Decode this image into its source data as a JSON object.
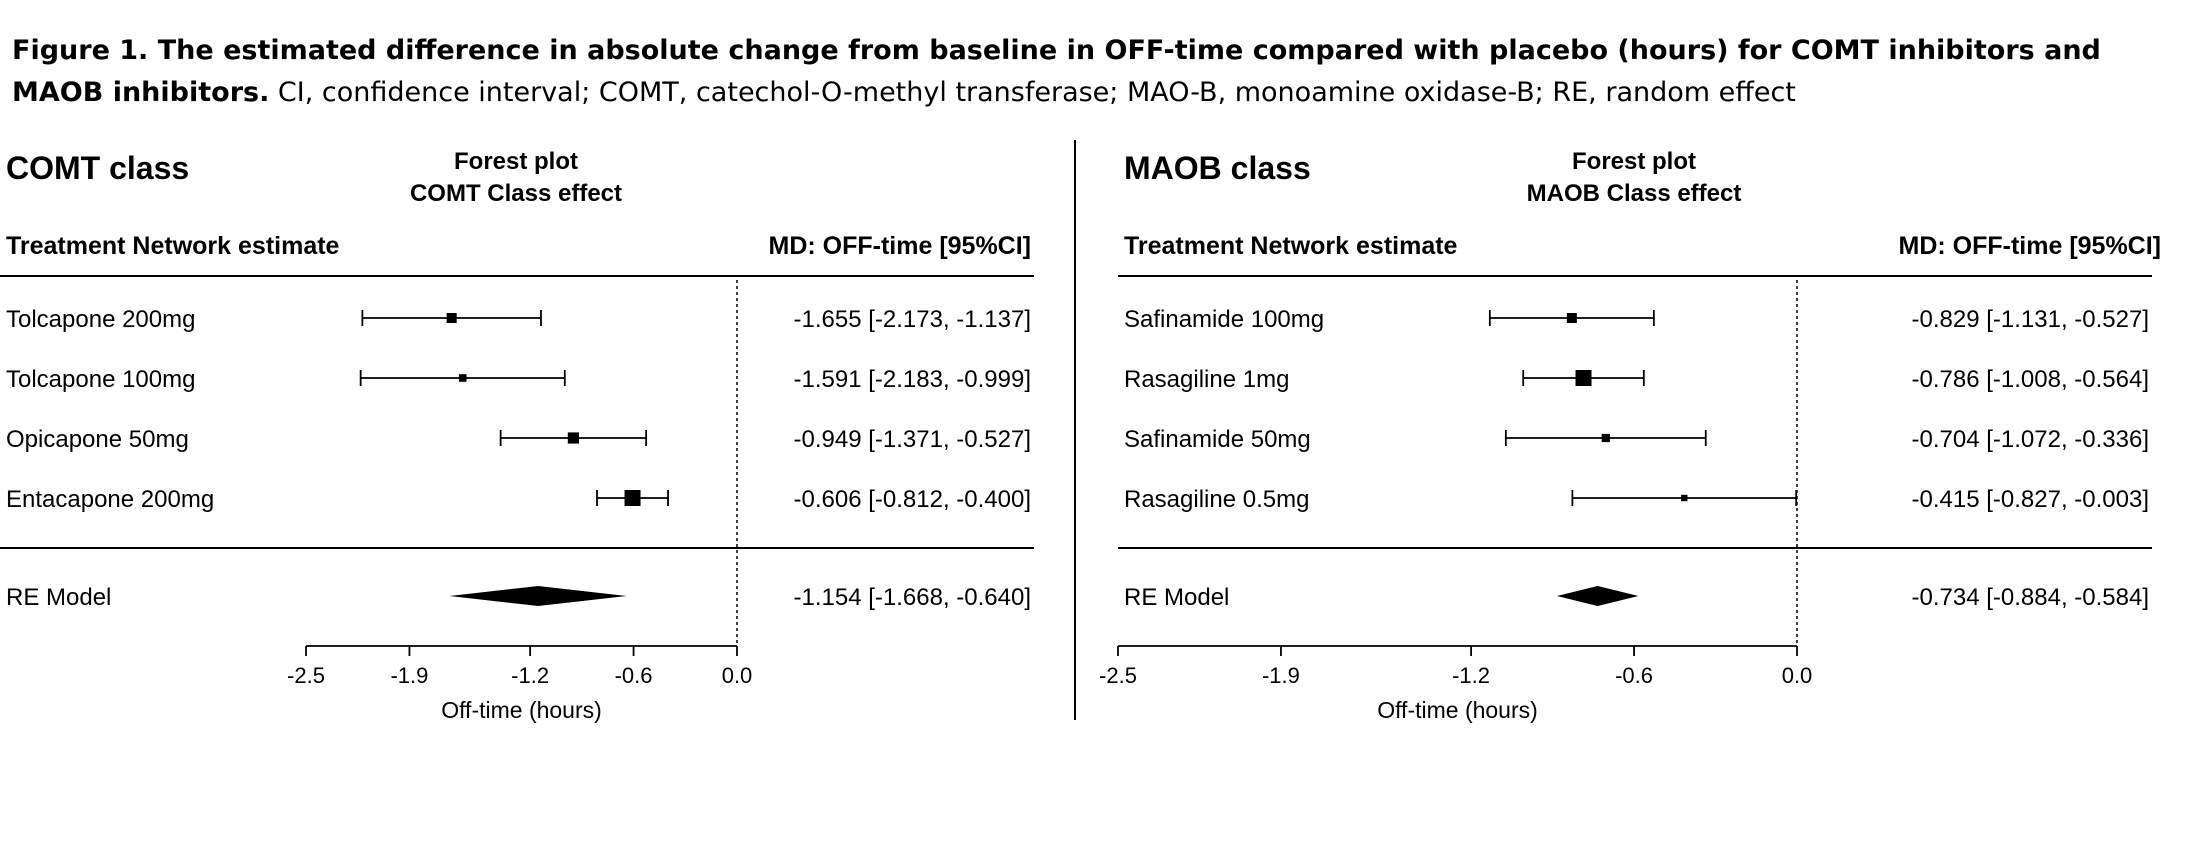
{
  "figure": {
    "caption_bold": "Figure 1. The estimated difference in absolute change from baseline in OFF-time compared with placebo (hours) for COMT inhibitors and MAOB inhibitors.",
    "caption_rest": " CI, confidence interval; COMT, catechol-O-methyl transferase; MAO-B, monoamine oxidase-B; RE, random effect"
  },
  "panels": [
    {
      "title": "COMT class",
      "subtitle1": "Forest plot",
      "subtitle2": "COMT Class effect",
      "col_left": "Treatment Network estimate",
      "col_right": "MD: OFF-time [95%CI]"
    },
    {
      "title": "MAOB class",
      "subtitle1": "Forest plot",
      "subtitle2": "MAOB Class effect",
      "col_left": "Treatment Network estimate",
      "col_right": "MD: OFF-time [95%CI]"
    }
  ],
  "chart_data": [
    {
      "type": "forest",
      "xlabel": "Off-time (hours)",
      "xlim": [
        -2.5,
        0.0
      ],
      "xticks": [
        -2.5,
        -1.9,
        -1.2,
        -0.6,
        0.0
      ],
      "xtick_labels": [
        "-2.5",
        "-1.9",
        "-1.2",
        "-0.6",
        "0.0"
      ],
      "reference_line": 0.0,
      "studies": [
        {
          "label": "Tolcapone 200mg",
          "est": -1.655,
          "lo": -2.173,
          "hi": -1.137,
          "text": "-1.655 [-2.173, -1.137]",
          "weight": 0.5
        },
        {
          "label": "Tolcapone 100mg",
          "est": -1.591,
          "lo": -2.183,
          "hi": -0.999,
          "text": "-1.591 [-2.183, -0.999]",
          "weight": 0.3
        },
        {
          "label": "Opicapone 50mg",
          "est": -0.949,
          "lo": -1.371,
          "hi": -0.527,
          "text": "-0.949 [-1.371, -0.527]",
          "weight": 0.6
        },
        {
          "label": "Entacapone 200mg",
          "est": -0.606,
          "lo": -0.812,
          "hi": -0.4,
          "text": "-0.606 [-0.812, -0.400]",
          "weight": 1.0
        }
      ],
      "summary": {
        "label": "RE Model",
        "est": -1.154,
        "lo": -1.668,
        "hi": -0.64,
        "text": "-1.154 [-1.668, -0.640]"
      }
    },
    {
      "type": "forest",
      "xlabel": "Off-time (hours)",
      "xlim": [
        -2.5,
        0.0
      ],
      "xticks": [
        -2.5,
        -1.9,
        -1.2,
        -0.6,
        0.0
      ],
      "xtick_labels": [
        "-2.5",
        "-1.9",
        "-1.2",
        "-0.6",
        "0.0"
      ],
      "reference_line": 0.0,
      "studies": [
        {
          "label": "Safinamide 100mg",
          "est": -0.829,
          "lo": -1.131,
          "hi": -0.527,
          "text": "-0.829 [-1.131, -0.527]",
          "weight": 0.5
        },
        {
          "label": "Rasagiline 1mg",
          "est": -0.786,
          "lo": -1.008,
          "hi": -0.564,
          "text": "-0.786 [-1.008, -0.564]",
          "weight": 1.0
        },
        {
          "label": "Safinamide 50mg",
          "est": -0.704,
          "lo": -1.072,
          "hi": -0.336,
          "text": "-0.704 [-1.072, -0.336]",
          "weight": 0.35
        },
        {
          "label": "Rasagiline 0.5mg",
          "est": -0.415,
          "lo": -0.827,
          "hi": -0.003,
          "text": "-0.415 [-0.827, -0.003]",
          "weight": 0.2
        }
      ],
      "summary": {
        "label": "RE Model",
        "est": -0.734,
        "lo": -0.884,
        "hi": -0.584,
        "text": "-0.734 [-0.884, -0.584]"
      }
    }
  ]
}
